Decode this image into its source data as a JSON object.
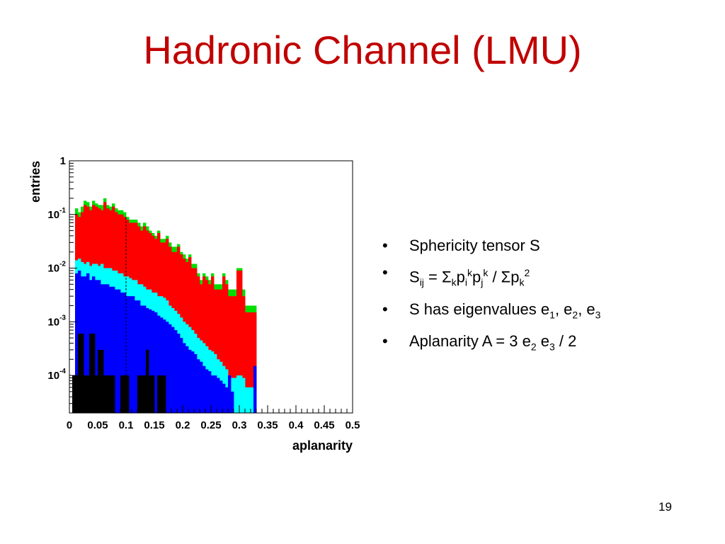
{
  "slide": {
    "title": "Hadronic Channel (LMU)",
    "page_number": "19",
    "bullet_char": "•",
    "bullets": [
      {
        "parts": [
          {
            "t": "Sphericity tensor S",
            "s": ""
          }
        ]
      },
      {
        "parts": [
          {
            "t": "S",
            "s": ""
          },
          {
            "t": "ij",
            "s": "sub"
          },
          {
            "t": " = Σ",
            "s": ""
          },
          {
            "t": "k",
            "s": "sub"
          },
          {
            "t": "p",
            "s": ""
          },
          {
            "t": "i",
            "s": "sub"
          },
          {
            "t": "k",
            "s": "sup"
          },
          {
            "t": "p",
            "s": ""
          },
          {
            "t": "j",
            "s": "sub"
          },
          {
            "t": "k",
            "s": "sup"
          },
          {
            "t": " / Σp",
            "s": ""
          },
          {
            "t": "k",
            "s": "sub"
          },
          {
            "t": "2",
            "s": "sup"
          }
        ]
      },
      {
        "parts": [
          {
            "t": "S has eigenvalues e",
            "s": ""
          },
          {
            "t": "1",
            "s": "sub"
          },
          {
            "t": ", e",
            "s": ""
          },
          {
            "t": "2",
            "s": "sub"
          },
          {
            "t": ", e",
            "s": ""
          },
          {
            "t": "3",
            "s": "sub"
          }
        ]
      },
      {
        "parts": [
          {
            "t": "Aplanarity A = 3 e",
            "s": ""
          },
          {
            "t": "2",
            "s": "sub"
          },
          {
            "t": " e",
            "s": ""
          },
          {
            "t": "3",
            "s": "sub"
          },
          {
            "t": " / 2",
            "s": ""
          }
        ]
      }
    ]
  },
  "chart_data": {
    "type": "bar",
    "xlabel": "aplanarity",
    "ylabel": "entries",
    "xlim": [
      0,
      0.5
    ],
    "ylim": [
      2e-05,
      1
    ],
    "log_y": true,
    "bin_width": 0.005,
    "x_ticks": [
      0,
      0.05,
      0.1,
      0.15,
      0.2,
      0.25,
      0.3,
      0.35,
      0.4,
      0.45,
      0.5
    ],
    "x_tick_labels": [
      "0",
      "0.05",
      "0.1",
      "0.15",
      "0.2",
      "0.25",
      "0.3",
      "0.35",
      "0.4",
      "0.45",
      "0.5"
    ],
    "y_ticks": [
      1,
      0.1,
      0.01,
      0.001,
      0.0001
    ],
    "y_tick_labels": [
      {
        "base": "1",
        "exp": ""
      },
      {
        "base": "10",
        "exp": "-1"
      },
      {
        "base": "10",
        "exp": "-2"
      },
      {
        "base": "10",
        "exp": "-3"
      },
      {
        "base": "10",
        "exp": "-4"
      }
    ],
    "vline_x": 0.1,
    "colors": {
      "green": "#00dd00",
      "red": "#ff0000",
      "cyan": "#00ffff",
      "blue": "#0000ff",
      "black": "#000000"
    },
    "series": [
      {
        "color": "green",
        "values": [
          0,
          0,
          0.13,
          0.11,
          0.14,
          0.18,
          0.17,
          0.14,
          0.18,
          0.16,
          0.15,
          0.15,
          0.2,
          0.15,
          0.14,
          0.16,
          0.13,
          0.12,
          0.12,
          0.11,
          0.09,
          0.08,
          0.08,
          0.08,
          0.07,
          0.06,
          0.07,
          0.06,
          0.05,
          0.045,
          0.04,
          0.05,
          0.035,
          0.035,
          0.04,
          0.03,
          0.025,
          0.025,
          0.028,
          0.02,
          0.018,
          0.015,
          0.018,
          0.012,
          0.012,
          0.008,
          0.006,
          0.008,
          0.007,
          0.006,
          0.008,
          0.005,
          0.005,
          0.005,
          0.008,
          0.006,
          0.004,
          0.004,
          0.004,
          0.01,
          0.01,
          0.004,
          0.002,
          0.002,
          0.002,
          0.002,
          0,
          0,
          0,
          0,
          0,
          0,
          0,
          0,
          0,
          0,
          0,
          0,
          0,
          0,
          0,
          0,
          0,
          0,
          0,
          0,
          0,
          0,
          0,
          0,
          0,
          0,
          0,
          0,
          0,
          0,
          0,
          0,
          0,
          0
        ]
      },
      {
        "color": "red",
        "values": [
          0,
          0,
          0.1,
          0.09,
          0.11,
          0.15,
          0.14,
          0.12,
          0.15,
          0.14,
          0.13,
          0.12,
          0.17,
          0.13,
          0.12,
          0.14,
          0.11,
          0.1,
          0.1,
          0.09,
          0.08,
          0.07,
          0.07,
          0.07,
          0.06,
          0.05,
          0.06,
          0.05,
          0.045,
          0.04,
          0.035,
          0.045,
          0.03,
          0.03,
          0.035,
          0.025,
          0.02,
          0.02,
          0.025,
          0.018,
          0.015,
          0.013,
          0.016,
          0.01,
          0.01,
          0.007,
          0.005,
          0.007,
          0.006,
          0.005,
          0.007,
          0.004,
          0.004,
          0.004,
          0.007,
          0.005,
          0.003,
          0.003,
          0.003,
          0.009,
          0.009,
          0.003,
          0.0015,
          0.0015,
          0.0015,
          0.0015,
          0,
          0,
          0,
          0,
          0,
          0,
          0,
          0,
          0,
          0,
          0,
          0,
          0,
          0,
          0,
          0,
          0,
          0,
          0,
          0,
          0,
          0,
          0,
          0,
          0,
          0,
          0,
          0,
          0,
          0,
          0,
          0,
          0,
          0
        ]
      },
      {
        "color": "cyan",
        "values": [
          0,
          0,
          0.014,
          0.015,
          0.013,
          0.012,
          0.013,
          0.011,
          0.012,
          0.012,
          0.011,
          0.012,
          0.01,
          0.01,
          0.01,
          0.009,
          0.009,
          0.008,
          0.008,
          0.007,
          0.007,
          0.0065,
          0.006,
          0.006,
          0.005,
          0.005,
          0.0045,
          0.004,
          0.004,
          0.0035,
          0.0035,
          0.003,
          0.003,
          0.0028,
          0.0025,
          0.002,
          0.0018,
          0.0016,
          0.0014,
          0.0012,
          0.001,
          0.0009,
          0.0008,
          0.0007,
          0.0006,
          0.0005,
          0.00045,
          0.0004,
          0.00035,
          0.0003,
          0.00028,
          0.00025,
          0.0002,
          0.00018,
          0.00015,
          0.00013,
          0.0001,
          9e-05,
          9e-05,
          0.0001,
          0.0001,
          9e-05,
          6e-05,
          6e-05,
          6e-05,
          5e-05,
          0,
          0,
          0,
          0,
          0,
          0,
          0,
          0,
          0,
          0,
          0,
          0,
          0,
          0,
          0,
          0,
          0,
          0,
          0,
          0,
          0,
          0,
          0,
          0,
          0,
          0,
          0,
          0,
          0,
          0,
          0,
          0,
          0,
          0
        ]
      },
      {
        "color": "blue",
        "values": [
          0,
          0,
          0.008,
          0.009,
          0.007,
          0.007,
          0.008,
          0.006,
          0.007,
          0.006,
          0.006,
          0.005,
          0.005,
          0.005,
          0.0045,
          0.0045,
          0.004,
          0.004,
          0.0035,
          0.0035,
          0.003,
          0.003,
          0.003,
          0.0025,
          0.0025,
          0.002,
          0.002,
          0.0018,
          0.0017,
          0.0016,
          0.0015,
          0.0013,
          0.0012,
          0.0011,
          0.001,
          0.0009,
          0.0008,
          0.0007,
          0.0006,
          0.0005,
          0.0004,
          0.00035,
          0.0003,
          0.00028,
          0.00025,
          0.0002,
          0.00018,
          0.00015,
          0.00013,
          0.00012,
          0.0001,
          0.0001,
          9e-05,
          8e-05,
          7e-05,
          6e-05,
          0.0001,
          5e-05,
          0,
          0,
          0,
          0,
          0,
          0,
          0,
          0.00015,
          0,
          0,
          0,
          0,
          0,
          0,
          0,
          0,
          0,
          0,
          0,
          0,
          0,
          0,
          0,
          0,
          0,
          0,
          0,
          0,
          0,
          0,
          0,
          0,
          0,
          0,
          0,
          0,
          0,
          0,
          0,
          0,
          0,
          0
        ]
      },
      {
        "color": "black",
        "values": [
          0,
          0.0001,
          0.0001,
          0.0006,
          0.0006,
          0.0001,
          0.0001,
          0.0006,
          0.0006,
          0.0001,
          0.0003,
          0.0003,
          0.0001,
          0.0001,
          0.0001,
          0.0001,
          0,
          0,
          0.0001,
          0.0001,
          0.0001,
          0,
          0,
          0,
          0.0001,
          0.0001,
          0.0001,
          0.0003,
          0.0001,
          0.0001,
          0,
          0.0001,
          0.0001,
          0.0001,
          0,
          0,
          0,
          0,
          0,
          0,
          0,
          0,
          0,
          0,
          0,
          0,
          0,
          0,
          0,
          0,
          0,
          0,
          0,
          0,
          0,
          0,
          0,
          0,
          0,
          0,
          0,
          0,
          0,
          0,
          0,
          0,
          0,
          0,
          0,
          0,
          0,
          0,
          0,
          0,
          0,
          0,
          0,
          0,
          0,
          0,
          0,
          0,
          0,
          0,
          0,
          0,
          0,
          0,
          0,
          0,
          0,
          0,
          0,
          0,
          0,
          0,
          0,
          0,
          0,
          0
        ]
      }
    ]
  }
}
